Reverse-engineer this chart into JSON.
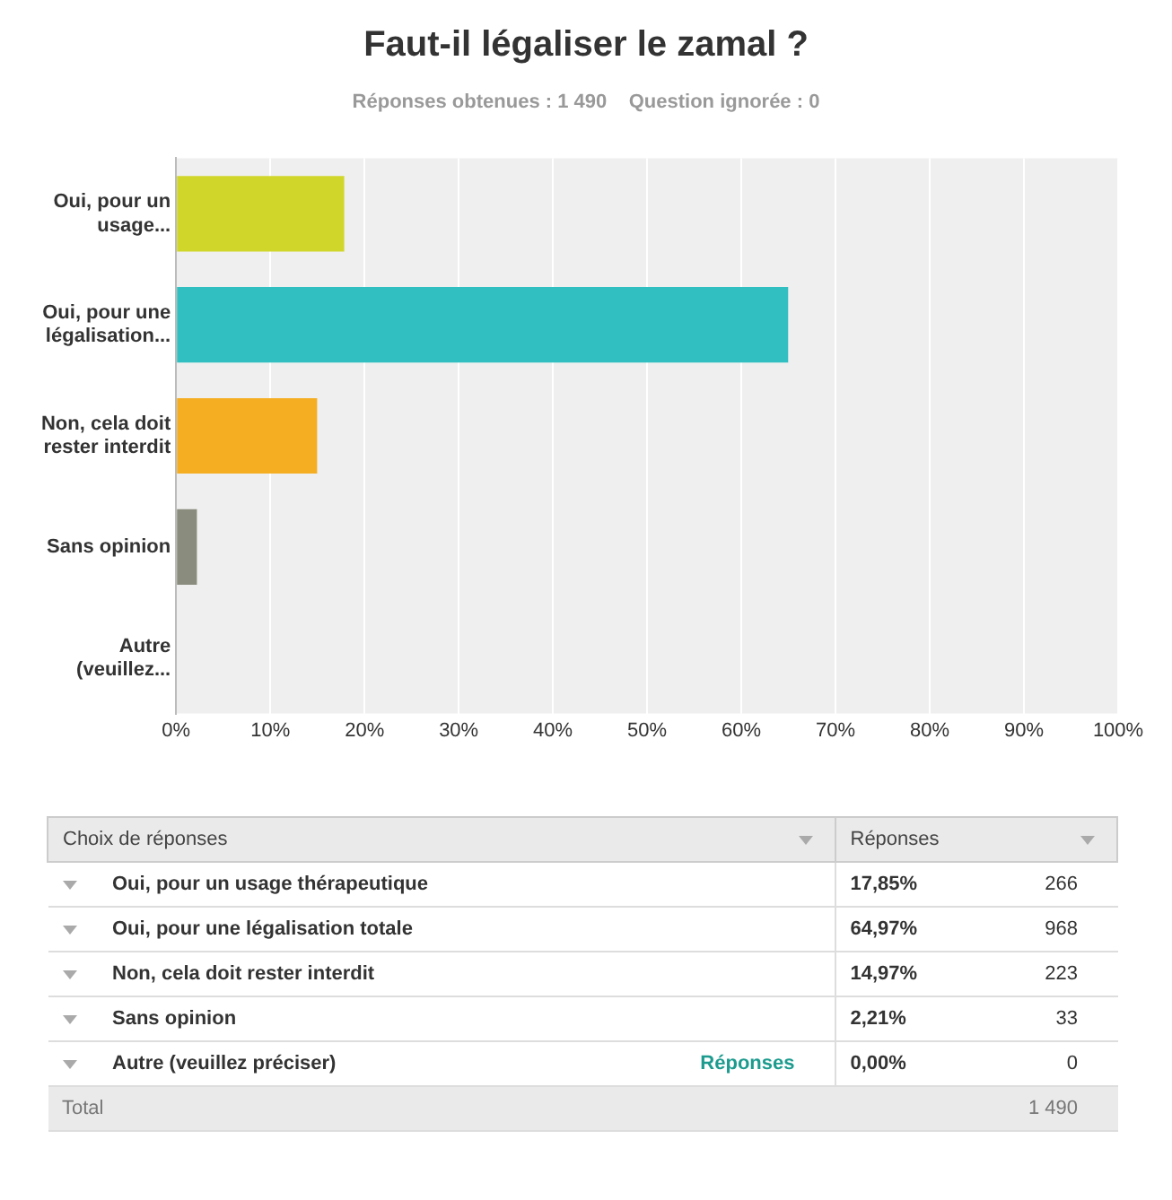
{
  "chart_data": [
    {
      "type": "bar",
      "orientation": "horizontal",
      "title": "Faut-il légaliser le zamal ?",
      "subtitle": "Réponses obtenues : 1 490    Question ignorée : 0",
      "categories": [
        "Oui, pour un usage...",
        "Oui, pour une légalisation...",
        "Non, cela doit rester interdit",
        "Sans opinion",
        "Autre (veuillez..."
      ],
      "values": [
        17.85,
        64.97,
        14.97,
        2.21,
        0
      ],
      "colors": [
        "#d0d62a",
        "#32bfc1",
        "#f5ae22",
        "#8a8c7e",
        "#9e9e9e"
      ],
      "xlim": [
        0,
        100
      ],
      "xticks": [
        {
          "value": 0,
          "label": "0%"
        },
        {
          "value": 10,
          "label": "10%"
        },
        {
          "value": 20,
          "label": "20%"
        },
        {
          "value": 30,
          "label": "30%"
        },
        {
          "value": 40,
          "label": "40%"
        },
        {
          "value": 50,
          "label": "50%"
        },
        {
          "value": 60,
          "label": "60%"
        },
        {
          "value": 70,
          "label": "70%"
        },
        {
          "value": 80,
          "label": "80%"
        },
        {
          "value": 90,
          "label": "90%"
        },
        {
          "value": 100,
          "label": "100%"
        }
      ],
      "grid": "x",
      "legend": false
    },
    {
      "type": "other",
      "categories": [
        "Oui, pour un usage thérapeutique",
        "Oui, pour une légalisation totale",
        "Non, cela doit rester interdit",
        "Sans opinion",
        "Autre (veuillez préciser)"
      ],
      "value_labels": [
        "17,85%",
        "64,97%",
        "14,97%",
        "2,21%",
        "0,00%"
      ],
      "annotations": [
        "Choix de réponses",
        "Réponses",
        "Réponses",
        "266",
        "968",
        "223",
        "33",
        "0",
        "Total",
        "1 490"
      ]
    }
  ]
}
